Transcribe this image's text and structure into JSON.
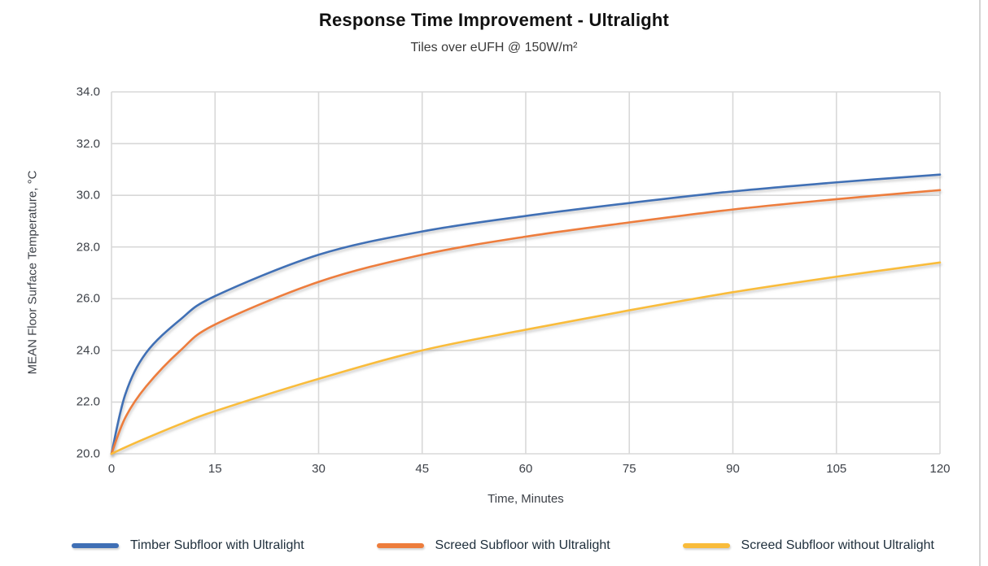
{
  "header": {
    "title": "Response Time Improvement - Ultralight",
    "subtitle": "Tiles over eUFH @ 150W/m²"
  },
  "chart_data": {
    "type": "line",
    "title": "Response Time Improvement - Ultralight",
    "subtitle": "Tiles over eUFH @ 150W/m²",
    "xlabel": "Time, Minutes",
    "ylabel": "MEAN Floor Surface Temperature, °C",
    "xlim": [
      0,
      120
    ],
    "ylim": [
      20,
      34
    ],
    "xticks": [
      0,
      15,
      30,
      45,
      60,
      75,
      90,
      105,
      120
    ],
    "yticks": [
      34,
      32,
      30,
      28,
      26,
      24,
      22,
      20
    ],
    "ytick_decimals": 1,
    "grid": true,
    "gridline_color": "#d8d8d8",
    "legend_position": "bottom",
    "series": [
      {
        "name": "Timber Subfloor with Ultralight",
        "color": "#3f6fb5",
        "points": [
          [
            0,
            20.0
          ],
          [
            2,
            22.3
          ],
          [
            5,
            23.9
          ],
          [
            10,
            25.2
          ],
          [
            15,
            26.1
          ],
          [
            30,
            27.7
          ],
          [
            45,
            28.6
          ],
          [
            60,
            29.2
          ],
          [
            75,
            29.7
          ],
          [
            90,
            30.15
          ],
          [
            105,
            30.5
          ],
          [
            120,
            30.8
          ]
        ]
      },
      {
        "name": "Screed Subfloor with Ultralight",
        "color": "#ed7d3c",
        "points": [
          [
            0,
            20.0
          ],
          [
            2,
            21.4
          ],
          [
            5,
            22.6
          ],
          [
            10,
            24.0
          ],
          [
            15,
            25.0
          ],
          [
            30,
            26.65
          ],
          [
            45,
            27.7
          ],
          [
            60,
            28.4
          ],
          [
            75,
            28.95
          ],
          [
            90,
            29.45
          ],
          [
            105,
            29.85
          ],
          [
            120,
            30.2
          ]
        ]
      },
      {
        "name": "Screed Subfloor without Ultralight",
        "color": "#f9bc3b",
        "points": [
          [
            0,
            20.0
          ],
          [
            2,
            20.25
          ],
          [
            5,
            20.6
          ],
          [
            10,
            21.15
          ],
          [
            15,
            21.65
          ],
          [
            30,
            22.9
          ],
          [
            45,
            24.0
          ],
          [
            60,
            24.8
          ],
          [
            75,
            25.55
          ],
          [
            90,
            26.25
          ],
          [
            105,
            26.85
          ],
          [
            120,
            27.4
          ]
        ]
      }
    ]
  }
}
